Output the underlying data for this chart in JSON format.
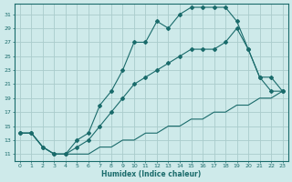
{
  "xlabel": "Humidex (Indice chaleur)",
  "ylabel": "",
  "bg_color": "#ceeaea",
  "line_color": "#1a6b6b",
  "grid_color": "#b8d8d8",
  "xlim": [
    -0.5,
    23.5
  ],
  "ylim": [
    10.0,
    32.5
  ],
  "yticks": [
    11,
    13,
    15,
    17,
    19,
    21,
    23,
    25,
    27,
    29,
    31
  ],
  "xticks": [
    0,
    1,
    2,
    3,
    4,
    5,
    6,
    7,
    8,
    9,
    10,
    11,
    12,
    13,
    14,
    15,
    16,
    17,
    18,
    19,
    20,
    21,
    22,
    23
  ],
  "line1_x": [
    0,
    1,
    2,
    3,
    4,
    5,
    6,
    7,
    8,
    9,
    10,
    11,
    12,
    13,
    14,
    15,
    16,
    17,
    18,
    19,
    20,
    21,
    22,
    23
  ],
  "line1_y": [
    14,
    14,
    12,
    11,
    11,
    13,
    14,
    18,
    20,
    23,
    27,
    27,
    30,
    29,
    31,
    32,
    32,
    32,
    32,
    30,
    26,
    22,
    20,
    20
  ],
  "line2_x": [
    0,
    1,
    2,
    3,
    4,
    5,
    6,
    7,
    8,
    9,
    10,
    11,
    12,
    13,
    14,
    15,
    16,
    17,
    18,
    19,
    20,
    21,
    22,
    23
  ],
  "line2_y": [
    14,
    14,
    12,
    11,
    11,
    12,
    13,
    15,
    17,
    19,
    21,
    22,
    23,
    24,
    25,
    26,
    26,
    26,
    27,
    29,
    26,
    22,
    22,
    20
  ],
  "line3_x": [
    0,
    1,
    2,
    3,
    4,
    5,
    6,
    7,
    8,
    9,
    10,
    11,
    12,
    13,
    14,
    15,
    16,
    17,
    18,
    19,
    20,
    21,
    22,
    23
  ],
  "line3_y": [
    14,
    14,
    12,
    11,
    11,
    11,
    11,
    12,
    12,
    13,
    13,
    14,
    14,
    15,
    15,
    16,
    16,
    17,
    17,
    18,
    18,
    19,
    19,
    20
  ]
}
